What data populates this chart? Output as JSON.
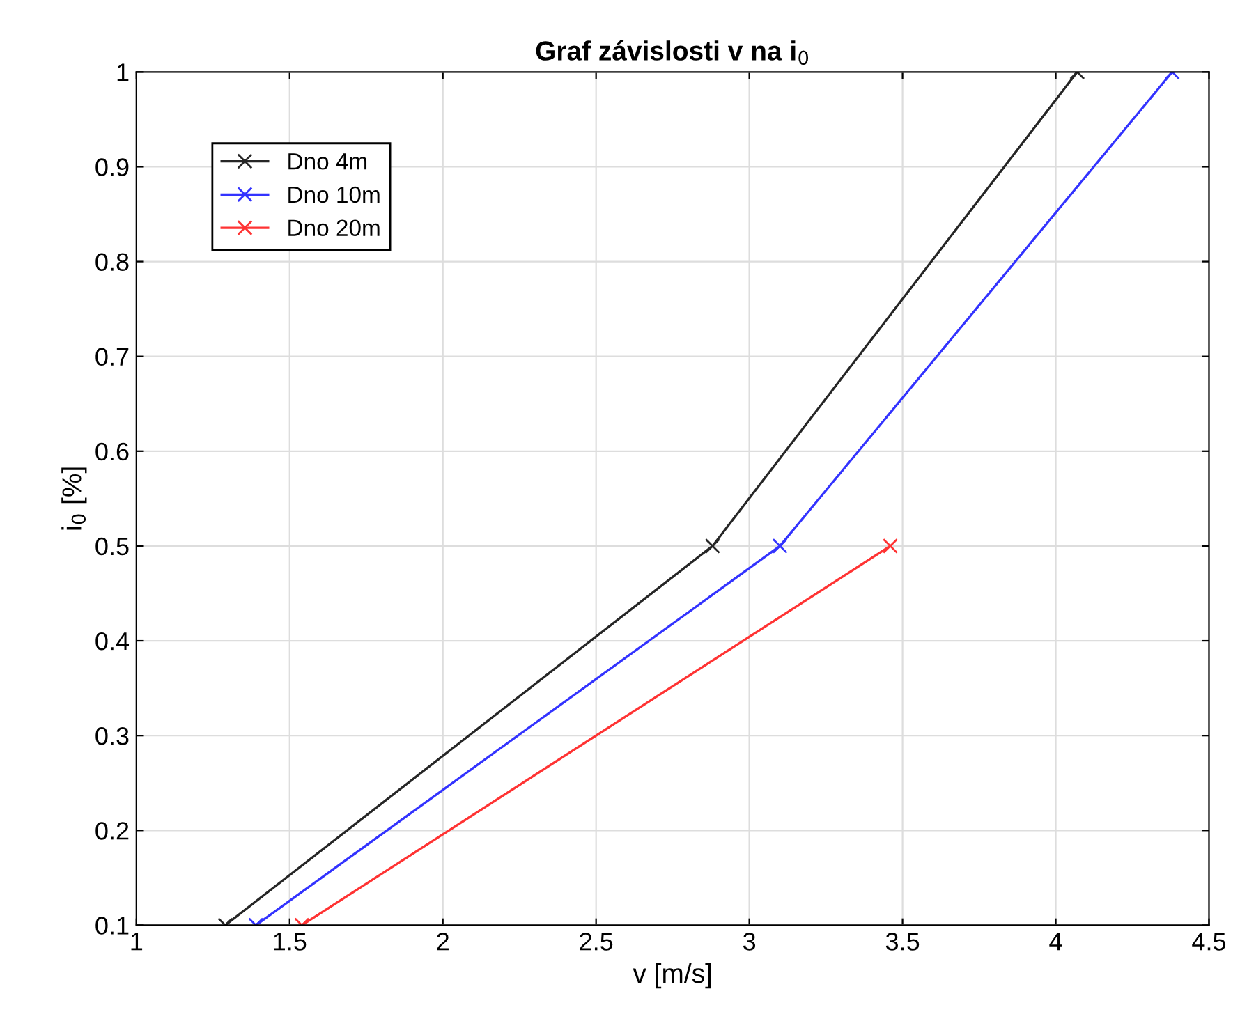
{
  "chart_data": {
    "type": "line",
    "title": "Graf závislosti v na i$_{0}$",
    "xlabel": "v [m/s]",
    "ylabel": "i$_{0}$ [%]",
    "series": [
      {
        "name": "Dno 4m",
        "color": "#262626",
        "x": [
          1.29,
          2.88,
          4.07
        ],
        "values": [
          0.1,
          0.5,
          1
        ]
      },
      {
        "name": "Dno 10m",
        "color": "#3333ff",
        "x": [
          1.39,
          3.1,
          4.38
        ],
        "values": [
          0.1,
          0.5,
          1
        ]
      },
      {
        "name": "Dno 20m",
        "color": "#ff3333",
        "x": [
          1.54,
          3.46
        ],
        "values": [
          0.1,
          0.5
        ]
      }
    ],
    "xlim": [
      1,
      4.5
    ],
    "xticks": [
      1,
      1.5,
      2,
      2.5,
      3,
      3.5,
      4,
      4.5
    ],
    "ylim": [
      0.1,
      1
    ],
    "yticks": [
      0.1,
      0.2,
      0.3,
      0.4,
      0.5,
      0.6,
      0.7,
      0.8,
      0.9,
      1
    ],
    "grid": true,
    "legend": "top left",
    "marker": "cross",
    "line_style": "solid"
  }
}
